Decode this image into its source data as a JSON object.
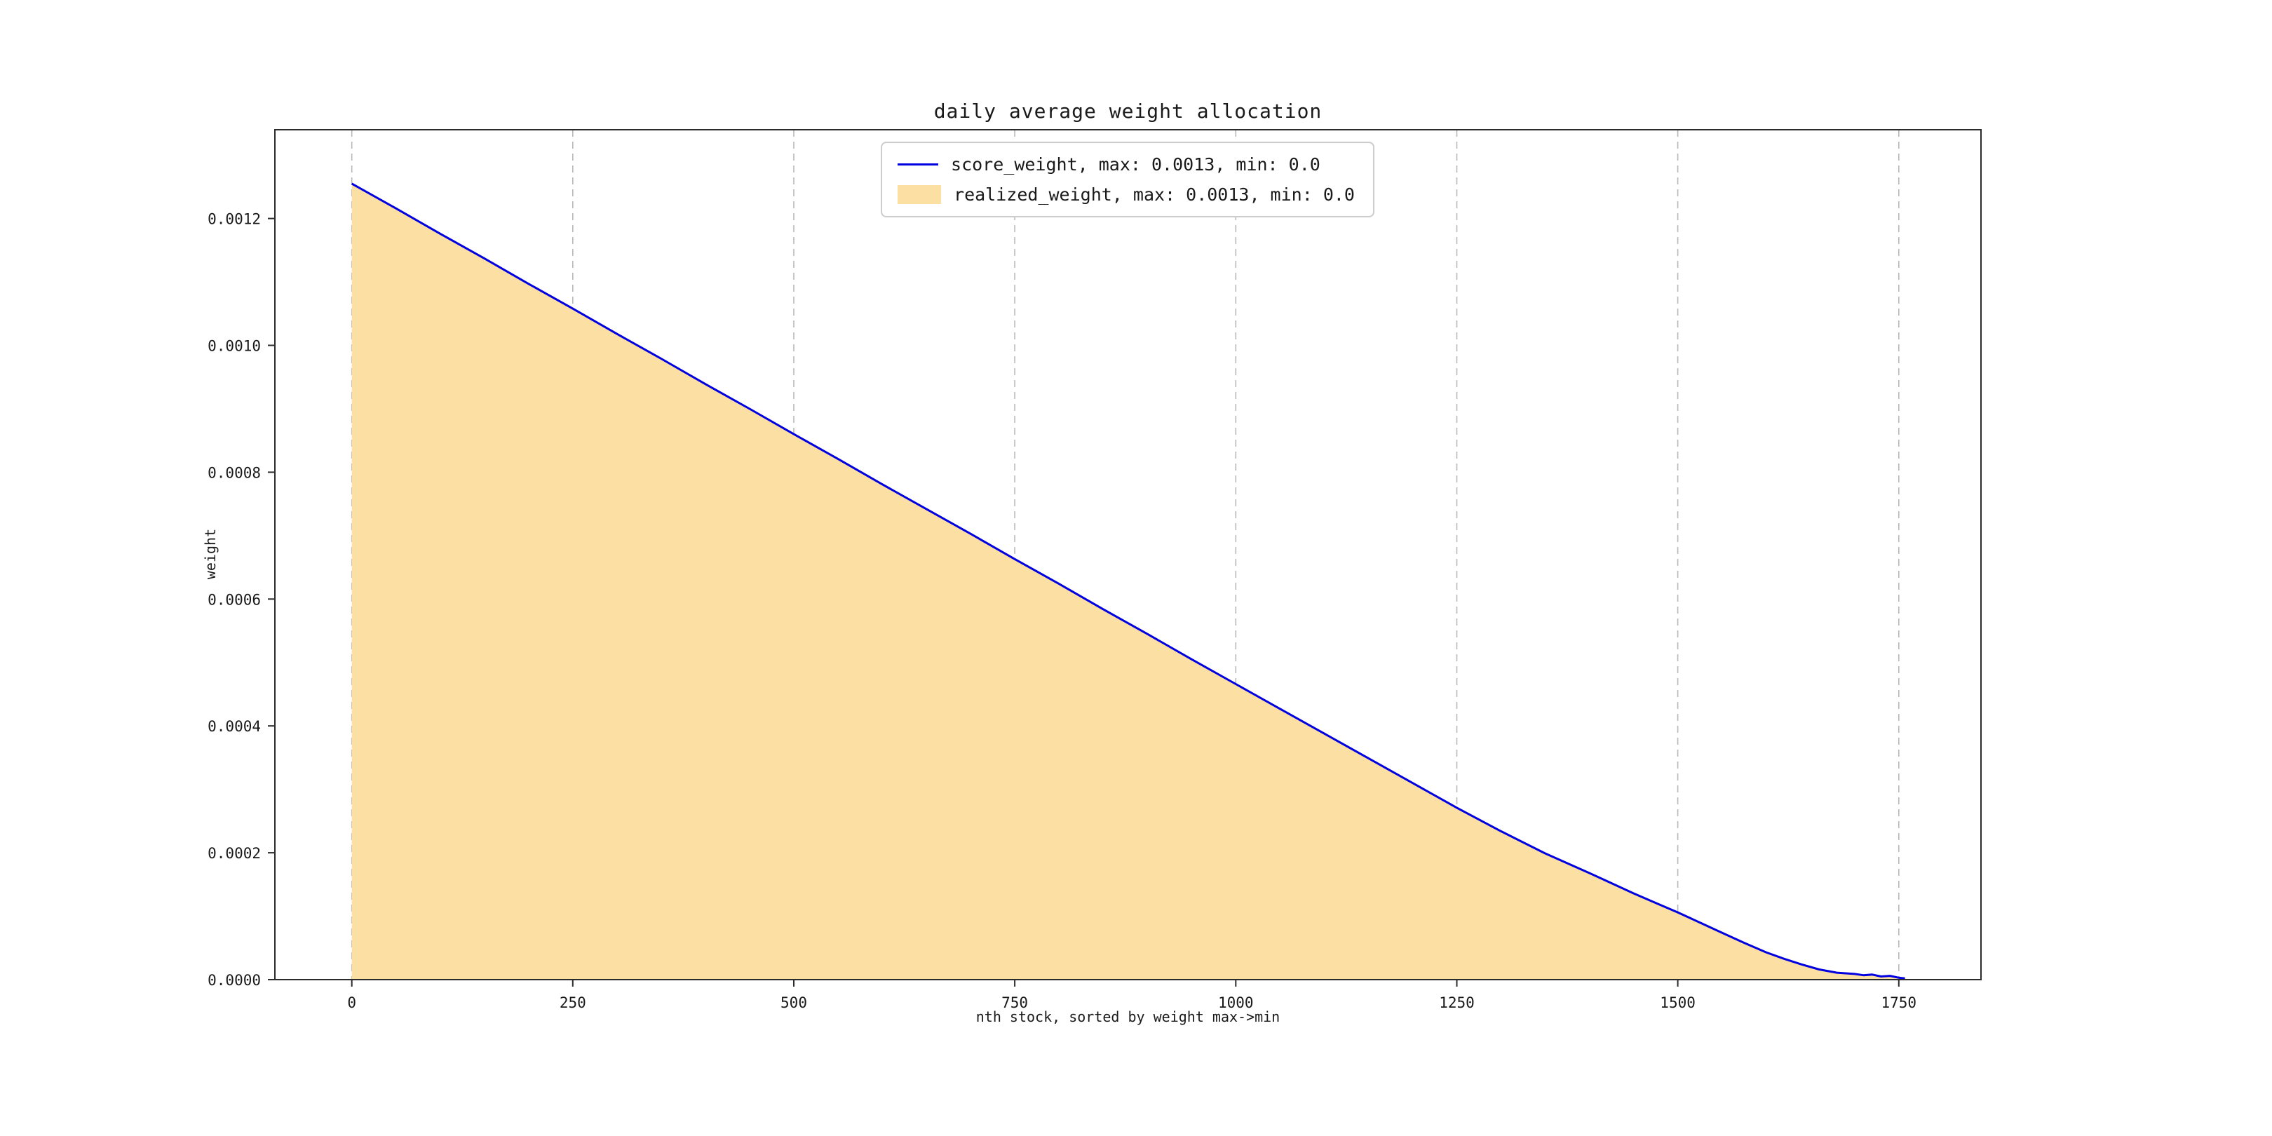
{
  "figure": {
    "title": "daily average weight allocation",
    "xlabel": "nth stock, sorted by weight max->min",
    "ylabel": "weight"
  },
  "legend": {
    "items": [
      {
        "type": "line",
        "color": "#0000e0",
        "label": "score_weight, max: 0.0013, min: 0.0"
      },
      {
        "type": "patch",
        "color": "#fcdfa2",
        "label": "realized_weight, max: 0.0013, min: 0.0"
      }
    ]
  },
  "chart_data": {
    "type": "area",
    "title": "daily average weight allocation",
    "xlabel": "nth stock, sorted by weight max->min",
    "ylabel": "weight",
    "xlim": [
      -87,
      1843
    ],
    "ylim": [
      0,
      0.00134
    ],
    "xticks": [
      0,
      250,
      500,
      750,
      1000,
      1250,
      1500,
      1750
    ],
    "yticks": [
      0,
      0.0002,
      0.0004,
      0.0006,
      0.0008,
      0.001,
      0.0012
    ],
    "ytick_labels": [
      "0.0000",
      "0.0002",
      "0.0004",
      "0.0006",
      "0.0008",
      "0.0010",
      "0.0012"
    ],
    "grid": "vertical-dashed",
    "legend_position": "upper center",
    "x": [
      0,
      50,
      100,
      150,
      200,
      250,
      300,
      350,
      400,
      450,
      500,
      550,
      600,
      650,
      700,
      750,
      800,
      850,
      900,
      950,
      1000,
      1050,
      1100,
      1150,
      1200,
      1250,
      1300,
      1350,
      1400,
      1425,
      1450,
      1475,
      1500,
      1525,
      1550,
      1575,
      1600,
      1620,
      1640,
      1660,
      1680,
      1700,
      1710,
      1720,
      1730,
      1740,
      1750,
      1757
    ],
    "series": [
      {
        "name": "score_weight",
        "type": "line",
        "color": "#0000e0",
        "max": 0.0013,
        "min": 0.0,
        "values": [
          0.001255,
          0.001216,
          0.001176,
          0.001137,
          0.001097,
          0.001058,
          0.001018,
          0.000979,
          0.000939,
          0.0009,
          0.00086,
          0.000821,
          0.000781,
          0.000742,
          0.000703,
          0.000663,
          0.000624,
          0.000584,
          0.000545,
          0.000505,
          0.000466,
          0.000427,
          0.000388,
          0.000349,
          0.00031,
          0.000271,
          0.000234,
          0.000199,
          0.000168,
          0.000152,
          0.000136,
          0.000121,
          0.000106,
          9e-05,
          7.4e-05,
          5.8e-05,
          4.3e-05,
          3.3e-05,
          2.4e-05,
          1.6e-05,
          1.1e-05,
          9e-06,
          7e-06,
          8e-06,
          5e-06,
          6e-06,
          3e-06,
          2e-06
        ]
      },
      {
        "name": "realized_weight",
        "type": "area",
        "color": "#fcdfa2",
        "max": 0.0013,
        "min": 0.0,
        "values": [
          0.001255,
          0.001216,
          0.001176,
          0.001137,
          0.001097,
          0.001058,
          0.001018,
          0.000979,
          0.000939,
          0.0009,
          0.00086,
          0.000821,
          0.000781,
          0.000742,
          0.000703,
          0.000663,
          0.000624,
          0.000584,
          0.000545,
          0.000505,
          0.000466,
          0.000427,
          0.000388,
          0.000349,
          0.00031,
          0.000271,
          0.000234,
          0.000199,
          0.000168,
          0.000152,
          0.000136,
          0.000121,
          0.000106,
          9e-05,
          7.4e-05,
          5.8e-05,
          4.3e-05,
          3.3e-05,
          2.4e-05,
          1.6e-05,
          1.1e-05,
          9e-06,
          7e-06,
          8e-06,
          5e-06,
          6e-06,
          3e-06,
          2e-06
        ]
      }
    ]
  }
}
